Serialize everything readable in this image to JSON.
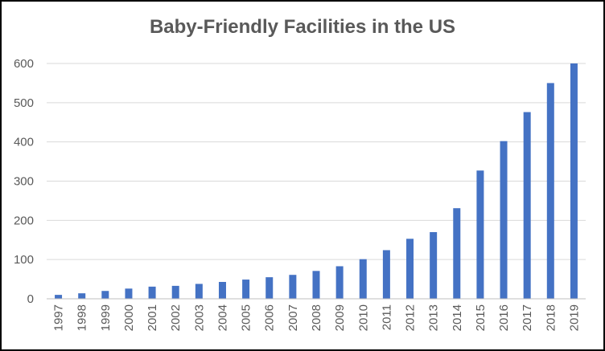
{
  "chart_data": {
    "type": "bar",
    "title": "Baby-Friendly Facilities in the US",
    "xlabel": "",
    "ylabel": "",
    "categories": [
      "1997",
      "1998",
      "1999",
      "2000",
      "2001",
      "2002",
      "2003",
      "2004",
      "2005",
      "2006",
      "2007",
      "2008",
      "2009",
      "2010",
      "2011",
      "2012",
      "2013",
      "2014",
      "2015",
      "2016",
      "2017",
      "2018",
      "2019"
    ],
    "values": [
      10,
      14,
      20,
      26,
      31,
      33,
      38,
      43,
      49,
      55,
      61,
      71,
      83,
      101,
      124,
      153,
      170,
      231,
      327,
      402,
      476,
      550,
      600
    ],
    "ylim": [
      0,
      600
    ],
    "yticks": [
      0,
      100,
      200,
      300,
      400,
      500,
      600
    ],
    "grid": true,
    "legend": "none",
    "bar_color": "#4472C4",
    "grid_color": "#D9D9D9",
    "axis_color": "#BFBFBF",
    "text_color": "#595959"
  }
}
